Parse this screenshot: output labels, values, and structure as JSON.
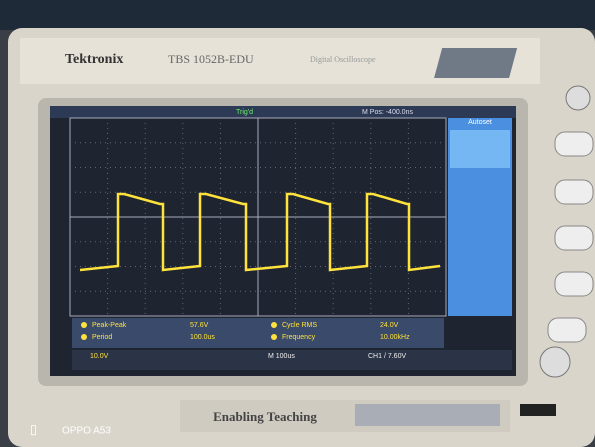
{
  "header": {
    "brand": "Tektronix",
    "model": "TBS 1052B-EDU",
    "subtitle": "Digital Oscilloscope"
  },
  "screen": {
    "trigger": "Trig'd",
    "position": "M Pos: -400.0ns",
    "menu": "Autoset",
    "measurements": [
      {
        "label": "Peak-Peak",
        "value": "57.6V"
      },
      {
        "label": "Period",
        "value": "100.0us"
      },
      {
        "label": "Cycle RMS",
        "value": "24.0V"
      },
      {
        "label": "Frequency",
        "value": "10.00kHz"
      }
    ],
    "status": {
      "channel": "10.0V",
      "timebase": "M 100us",
      "trigger_level": "CH1 / 7.60V"
    }
  },
  "footer": {
    "slogan": "Enabling Teaching",
    "watermark": "OPPO A53"
  }
}
